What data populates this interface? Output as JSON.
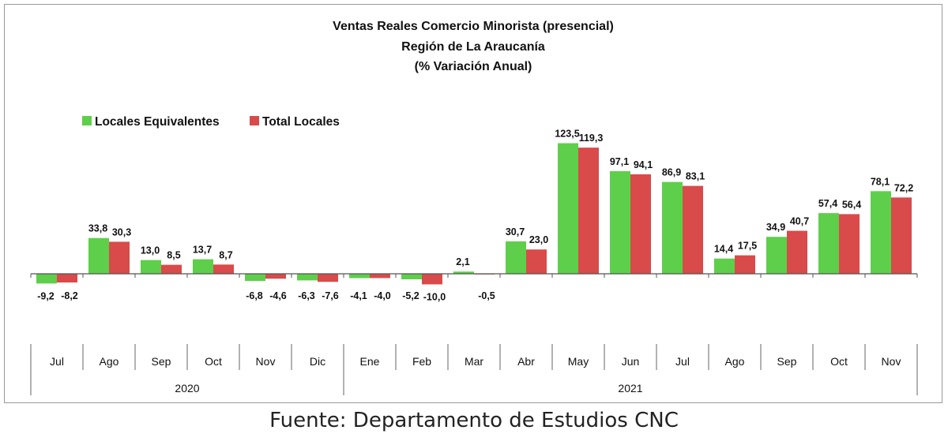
{
  "chart_data": {
    "type": "bar",
    "title": "Ventas Reales Comercio Minorista (presencial)",
    "subtitle": "Región de La Araucanía",
    "subtitle2": "(% Variación Anual)",
    "categories": [
      "Jul",
      "Ago",
      "Sep",
      "Oct",
      "Nov",
      "Dic",
      "Ene",
      "Feb",
      "Mar",
      "Abr",
      "May",
      "Jun",
      "Jul",
      "Ago",
      "Sep",
      "Oct",
      "Nov"
    ],
    "years": [
      {
        "label": "2020",
        "start": 0,
        "end": 5
      },
      {
        "label": "2021",
        "start": 6,
        "end": 16
      }
    ],
    "series": [
      {
        "name": "Locales Equivalentes",
        "color": "#5ecf4a",
        "values": [
          -9.2,
          33.8,
          13.0,
          13.7,
          -6.8,
          -6.3,
          -4.1,
          -5.2,
          2.1,
          30.7,
          123.5,
          97.1,
          86.9,
          14.4,
          34.9,
          57.4,
          78.1
        ],
        "labels": [
          "-9,2",
          "33,8",
          "13,0",
          "13,7",
          "-6,8",
          "-6,3",
          "-4,1",
          "-5,2",
          "2,1",
          "30,7",
          "123,5",
          "97,1",
          "86,9",
          "14,4",
          "34,9",
          "57,4",
          "78,1"
        ]
      },
      {
        "name": "Total Locales",
        "color": "#d94a4a",
        "values": [
          -8.2,
          30.3,
          8.5,
          8.7,
          -4.6,
          -7.6,
          -4.0,
          -10.0,
          -0.5,
          23.0,
          119.3,
          94.1,
          83.1,
          17.5,
          40.7,
          56.4,
          72.2
        ],
        "labels": [
          "-8,2",
          "30,3",
          "8,5",
          "8,7",
          "-4,6",
          "-7,6",
          "-4,0",
          "-10,0",
          "-0,5",
          "23,0",
          "119,3",
          "94,1",
          "83,1",
          "17,5",
          "40,7",
          "56,4",
          "72,2"
        ]
      }
    ],
    "legend_position": "top-left",
    "grid": false
  },
  "source": "Fuente: Departamento de Estudios CNC"
}
